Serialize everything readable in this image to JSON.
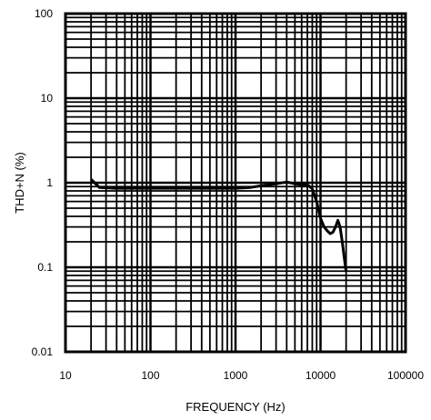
{
  "chart_data": {
    "type": "line",
    "title": "",
    "xlabel": "FREQUENCY (Hz)",
    "ylabel": "THD+N (%)",
    "xscale": "log",
    "yscale": "log",
    "xlim": [
      10,
      100000
    ],
    "ylim": [
      0.01,
      100
    ],
    "x_ticks": [
      "10",
      "100",
      "1000",
      "10000",
      "100000"
    ],
    "y_ticks": [
      "0.01",
      "0.1",
      "1",
      "10",
      "100"
    ],
    "grid": true,
    "legend": "none",
    "line_color": "#000000",
    "series": [
      {
        "x": [
          20,
          22,
          25,
          30,
          40,
          60,
          100,
          200,
          500,
          1000,
          1500,
          2000,
          3000,
          4000,
          5000,
          6000,
          7000,
          8000,
          9000,
          10000,
          11000,
          12000,
          13000,
          14000,
          15000,
          16000,
          17000,
          18000,
          19000,
          20000
        ],
        "y": [
          1.1,
          1.0,
          0.88,
          0.87,
          0.86,
          0.86,
          0.86,
          0.86,
          0.86,
          0.86,
          0.88,
          0.92,
          0.97,
          1.02,
          0.97,
          0.94,
          0.95,
          0.85,
          0.6,
          0.38,
          0.3,
          0.27,
          0.25,
          0.26,
          0.3,
          0.36,
          0.3,
          0.2,
          0.13,
          0.09
        ]
      }
    ]
  }
}
